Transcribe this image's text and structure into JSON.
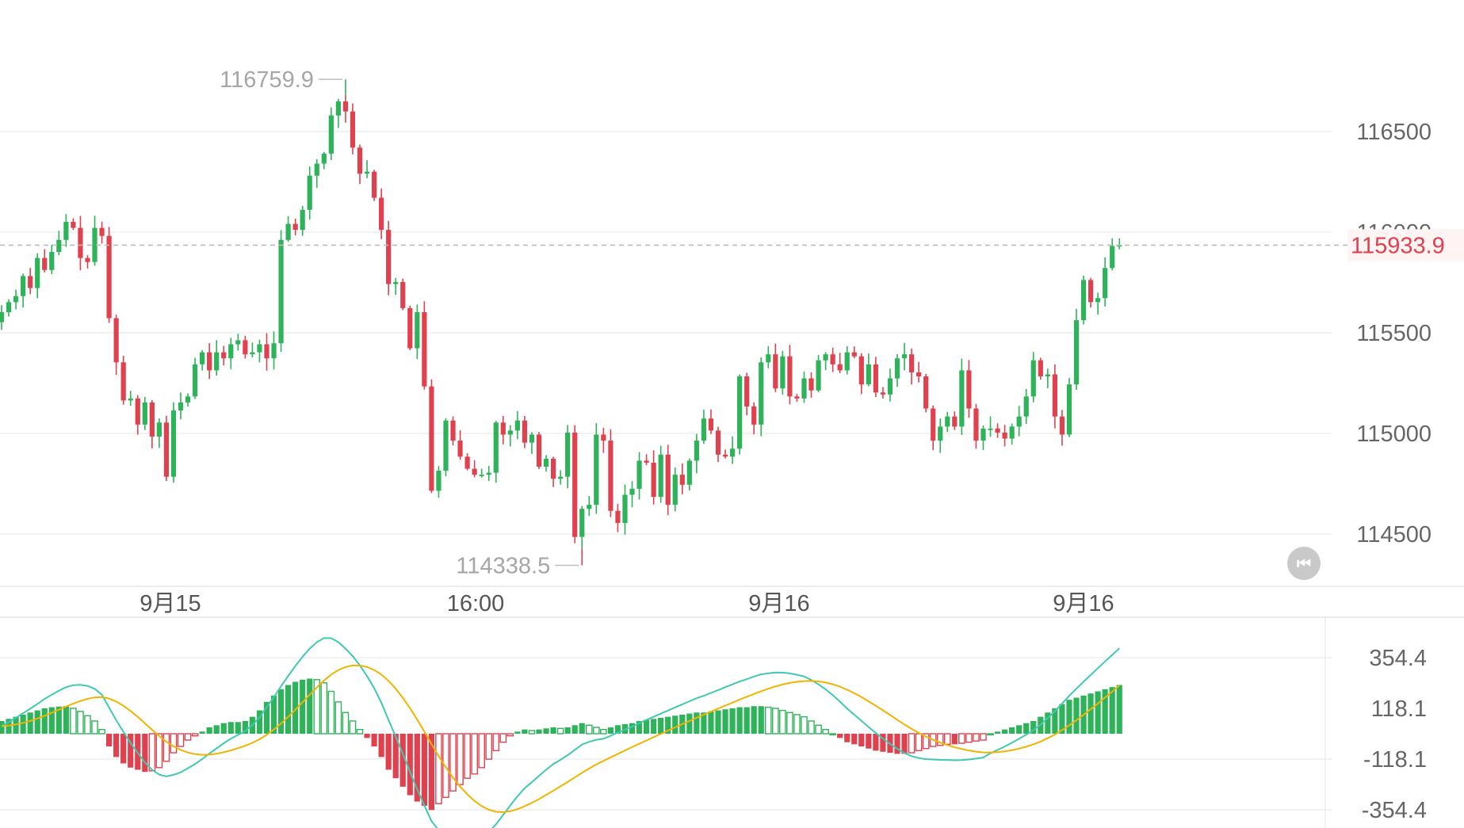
{
  "chart_data": [
    {
      "type": "candlestick",
      "x_tick_labels": [
        "9月15",
        "16:00",
        "9月16",
        "9月16"
      ],
      "y_tick_labels": [
        "116500",
        "116000",
        "115500",
        "115000",
        "114500"
      ],
      "ylim": [
        114200,
        117050
      ],
      "last_price": "115933.9",
      "high_label": "116759.9",
      "low_label": "114338.5",
      "colors": {
        "up": "#2eb35a",
        "down": "#e0414f",
        "grid": "#eeeeee",
        "last_line": "#bbbbbb"
      },
      "closes": [
        115600,
        115650,
        115680,
        115780,
        115720,
        115870,
        115810,
        115900,
        115960,
        116050,
        116020,
        115870,
        115850,
        116020,
        115980,
        115570,
        115350,
        115160,
        115170,
        115040,
        115150,
        114980,
        115050,
        114780,
        115110,
        115150,
        115180,
        115340,
        115400,
        115310,
        115400,
        115370,
        115440,
        115460,
        115390,
        115400,
        115440,
        115370,
        115445,
        115960,
        116040,
        116010,
        116110,
        116280,
        116340,
        116390,
        116580,
        116650,
        116600,
        116420,
        116290,
        116300,
        116170,
        116010,
        115740,
        115750,
        115620,
        115420,
        115600,
        115230,
        114710,
        114810,
        115060,
        114960,
        114880,
        114820,
        114790,
        114790,
        114800,
        115050,
        114990,
        115010,
        115060,
        114950,
        114990,
        114830,
        114870,
        114770,
        114780,
        115000,
        114480,
        114620,
        114640,
        114990,
        114960,
        114610,
        114550,
        114690,
        114720,
        114860,
        114850,
        114680,
        114890,
        114640,
        114790,
        114740,
        114860,
        114960,
        115070,
        115010,
        114890,
        114880,
        114920,
        115280,
        115130,
        115040,
        115350,
        115390,
        115220,
        115380,
        115180,
        115170,
        115270,
        115210,
        115360,
        115390,
        115340,
        115310,
        115400,
        115380,
        115240,
        115340,
        115200,
        115190,
        115270,
        115370,
        115390,
        115300,
        115280,
        115120,
        114960,
        115030,
        115080,
        115030,
        115310,
        115120,
        114960,
        115020,
        115020,
        115000,
        114970,
        115030,
        115080,
        115180,
        115360,
        115280,
        115290,
        115080,
        114990,
        115240,
        115560,
        115760,
        115650,
        115670,
        115820,
        115930,
        115933.9
      ],
      "histogram": [
        60,
        70,
        80,
        90,
        100,
        110,
        120,
        125,
        128,
        130,
        120,
        105,
        85,
        60,
        20,
        -60,
        -110,
        -140,
        -160,
        -170,
        -180,
        -175,
        -160,
        -130,
        -90,
        -60,
        -30,
        -10,
        10,
        30,
        40,
        50,
        55,
        55,
        60,
        80,
        110,
        150,
        180,
        210,
        230,
        245,
        255,
        260,
        255,
        240,
        200,
        150,
        100,
        60,
        20,
        -20,
        -60,
        -110,
        -170,
        -210,
        -250,
        -290,
        -320,
        -340,
        -360,
        -330,
        -300,
        -270,
        -240,
        -210,
        -190,
        -160,
        -120,
        -80,
        -40,
        -10,
        10,
        20,
        15,
        20,
        25,
        30,
        25,
        30,
        40,
        50,
        40,
        30,
        20,
        30,
        40,
        45,
        50,
        60,
        65,
        70,
        75,
        80,
        85,
        90,
        95,
        100,
        100,
        105,
        110,
        115,
        120,
        125,
        125,
        130,
        130,
        125,
        120,
        110,
        100,
        90,
        80,
        60,
        40,
        20,
        0,
        -20,
        -40,
        -50,
        -60,
        -70,
        -80,
        -85,
        -90,
        -95,
        -95,
        -90,
        -80,
        -70,
        -60,
        -55,
        -50,
        -50,
        -45,
        -40,
        -35,
        -30,
        0,
        10,
        20,
        30,
        40,
        50,
        60,
        80,
        100,
        120,
        140,
        160,
        170,
        180,
        190,
        200,
        210,
        220,
        230
      ]
    },
    {
      "type": "macd",
      "y_tick_labels": [
        "354.4",
        "118.1",
        "-118.1",
        "-354.4"
      ],
      "ylim": [
        -354.4,
        354.4
      ]
    }
  ]
}
